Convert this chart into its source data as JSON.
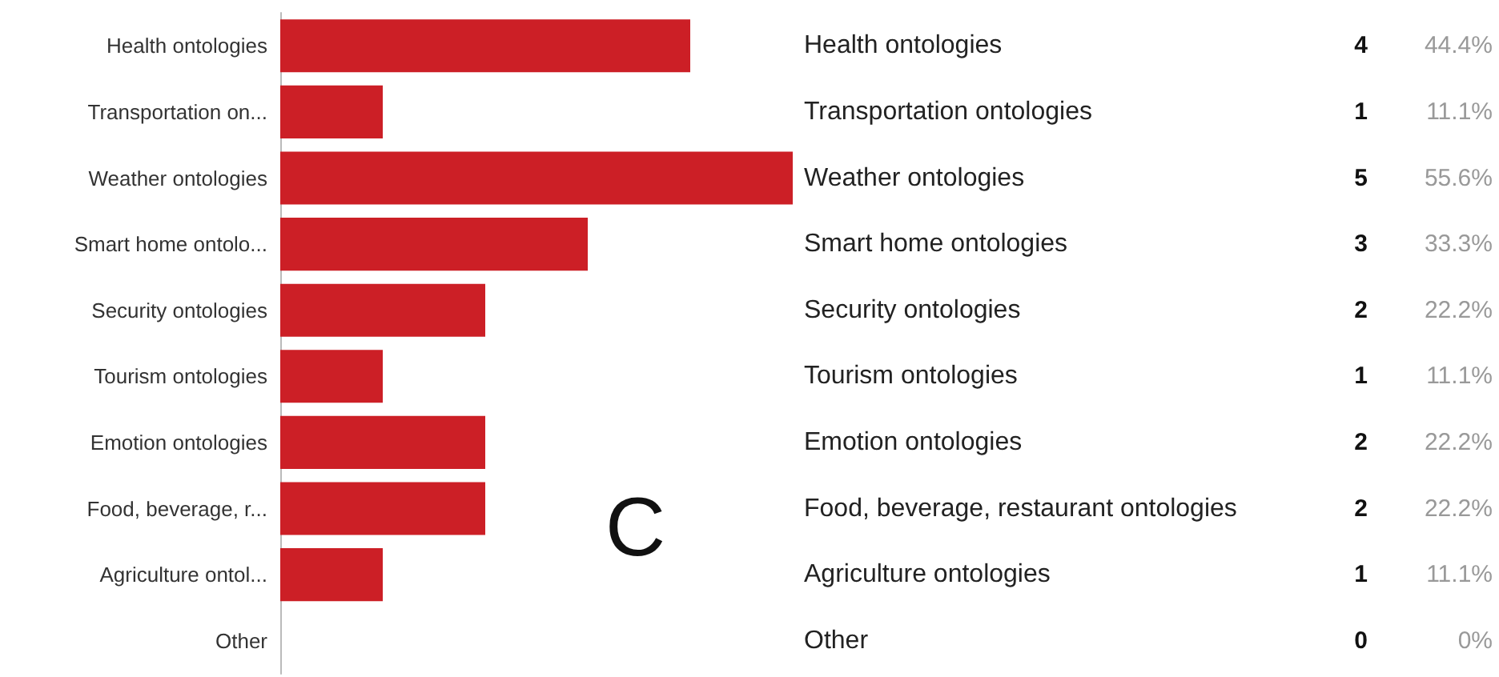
{
  "chart_data": {
    "type": "bar",
    "orientation": "horizontal",
    "categories": [
      "Health ontologies",
      "Transportation on...",
      "Weather ontologies",
      "Smart home ontolo...",
      "Security ontologies",
      "Tourism ontologies",
      "Emotion ontologies",
      "Food, beverage, r...",
      "Agriculture ontol...",
      "Other"
    ],
    "values": [
      4,
      1,
      5,
      3,
      2,
      1,
      2,
      2,
      1,
      0
    ],
    "color": "#cc1f26",
    "data_labels": true,
    "annotations": [
      "C",
      "Health ontologies",
      "Transportation ontologies",
      "Weather ontologies",
      "Smart home ontologies",
      "Security ontologies",
      "Tourism ontologies",
      "Emotion ontologies",
      "Food, beverage, restaurant ontologies",
      "Agriculture ontologies",
      "Other",
      "44.4%",
      "11.1%",
      "55.6%",
      "33.3%",
      "22.2%",
      "11.1%",
      "22.2%",
      "22.2%",
      "11.1%",
      "0%"
    ]
  }
}
